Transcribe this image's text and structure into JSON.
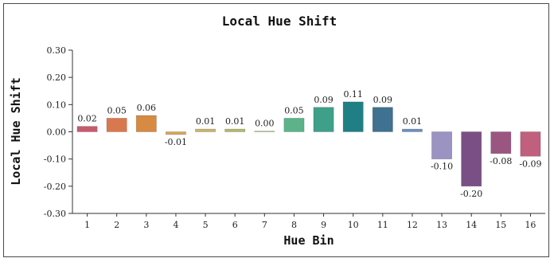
{
  "chart_data": {
    "type": "bar",
    "title": "Local Hue Shift",
    "xlabel": "Hue Bin",
    "ylabel": "Local Hue Shift",
    "categories": [
      "1",
      "2",
      "3",
      "4",
      "5",
      "6",
      "7",
      "8",
      "9",
      "10",
      "11",
      "12",
      "13",
      "14",
      "15",
      "16"
    ],
    "values": [
      0.02,
      0.05,
      0.06,
      -0.01,
      0.01,
      0.01,
      0.0,
      0.05,
      0.09,
      0.11,
      0.09,
      0.01,
      -0.1,
      -0.2,
      -0.08,
      -0.09
    ],
    "value_labels": [
      "0.02",
      "0.05",
      "0.06",
      "-0.01",
      "0.01",
      "0.01",
      "0.00",
      "0.05",
      "0.09",
      "0.11",
      "0.09",
      "0.01",
      "-0.10",
      "-0.20",
      "-0.08",
      "-0.09"
    ],
    "ylim": [
      -0.3,
      0.3
    ],
    "yticks": [
      0.3,
      0.2,
      0.1,
      0.0,
      -0.1,
      -0.2,
      -0.3
    ],
    "ytick_labels": [
      "0.30",
      "0.20",
      "0.10",
      "0.00",
      "-0.10",
      "-0.20",
      "-0.30"
    ],
    "colors": [
      "#c75a6e",
      "#d9784f",
      "#d68a42",
      "#d4a85a",
      "#c9b56a",
      "#b3b86a",
      "#9ab86a",
      "#5cb38a",
      "#3fa08a",
      "#1f7f85",
      "#3f7190",
      "#6b8fc0",
      "#9b93c2",
      "#7a4f86",
      "#9a5680",
      "#c0607e"
    ],
    "grid": false,
    "legend": "none"
  }
}
